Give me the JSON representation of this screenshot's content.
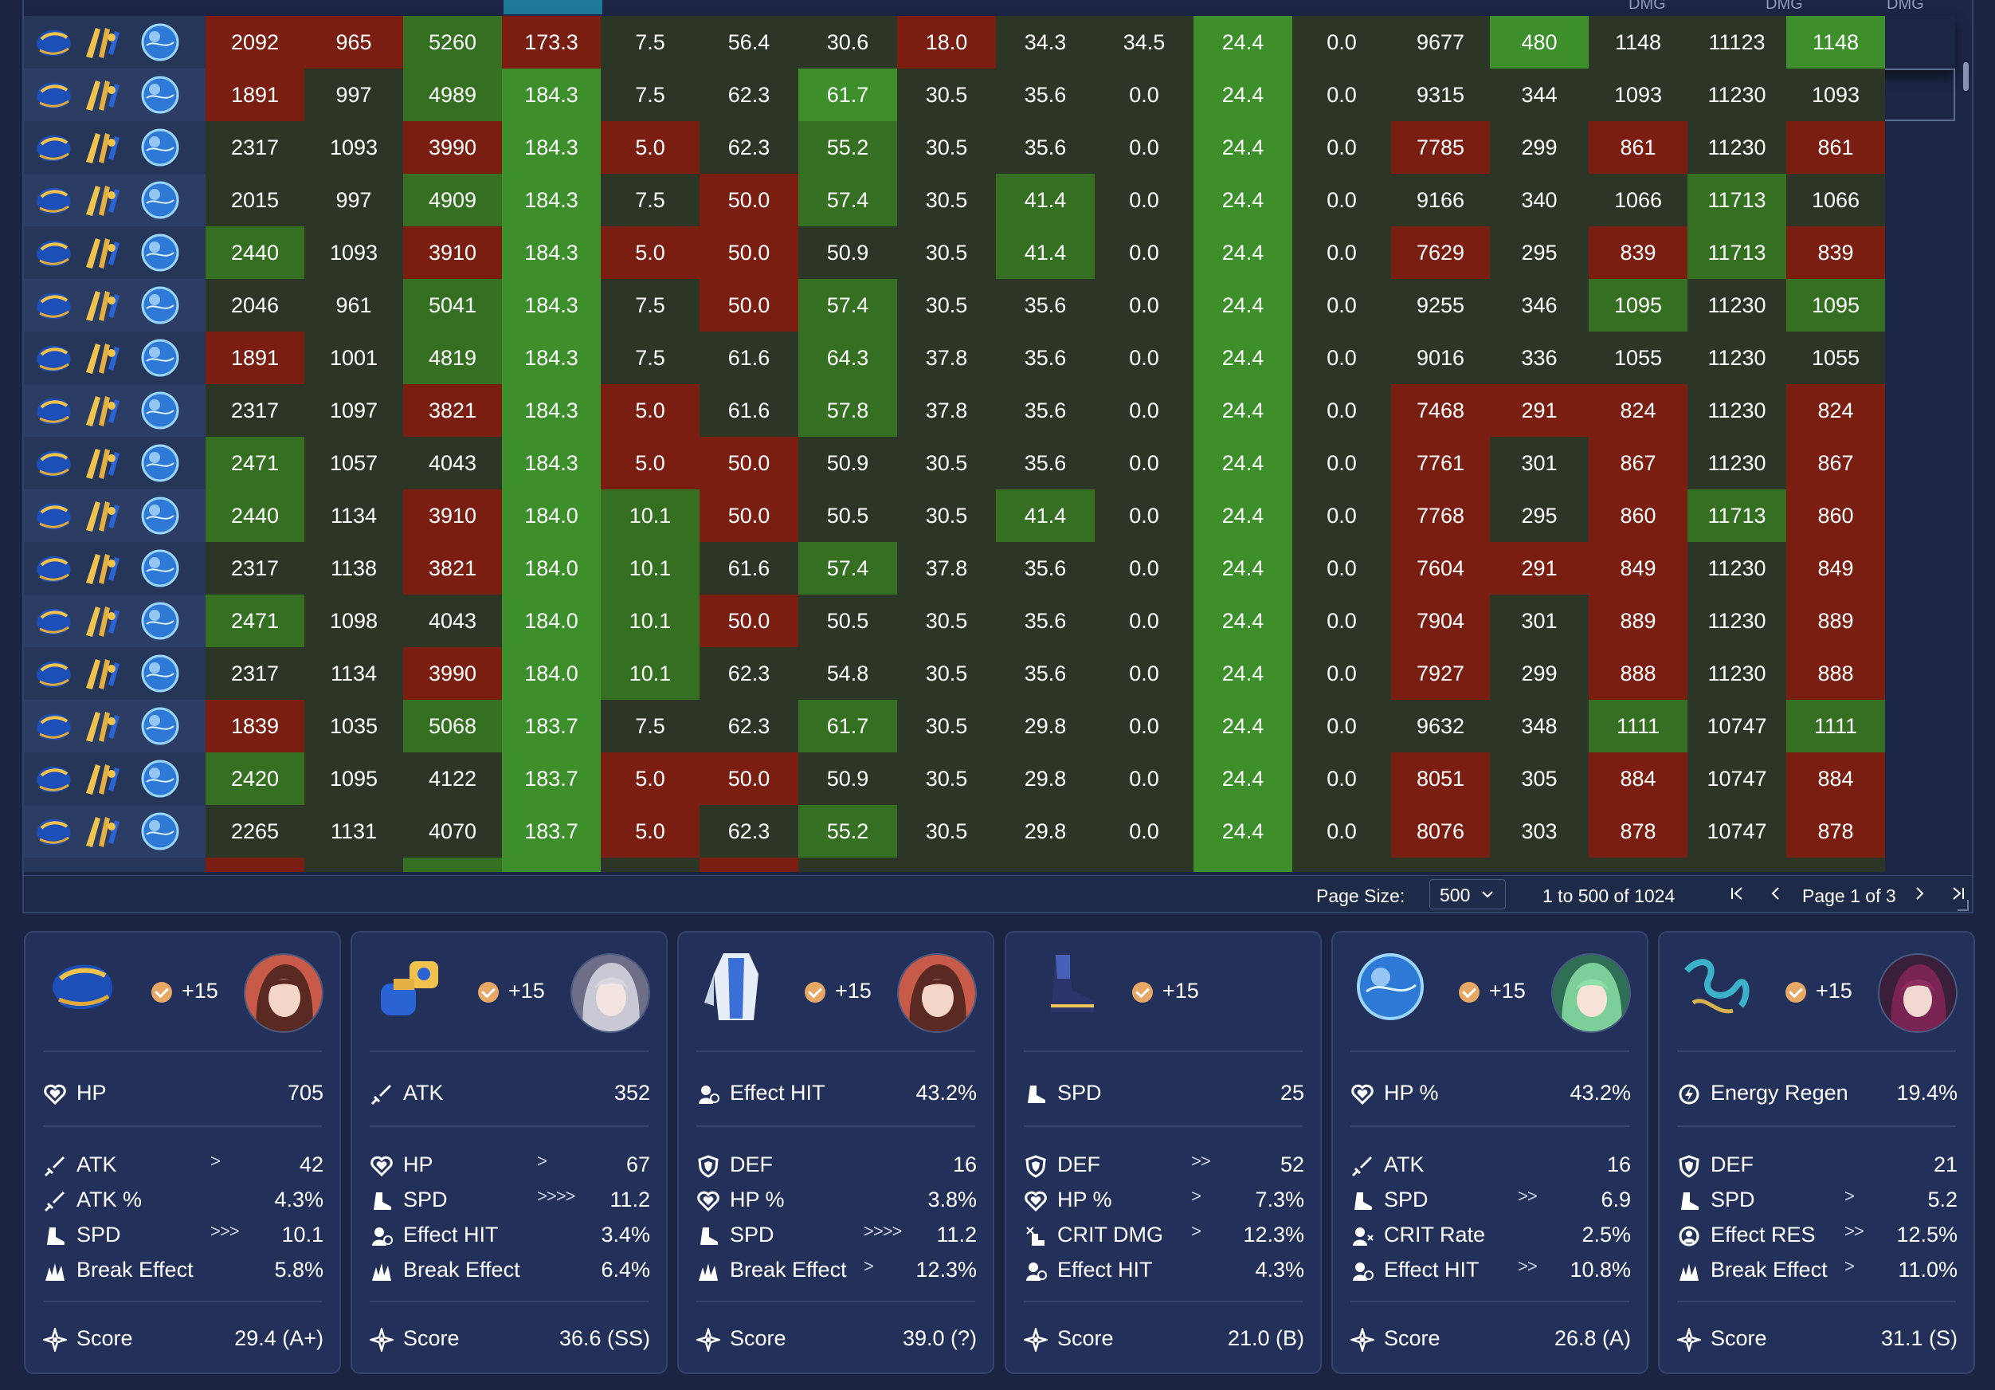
{
  "header": {
    "col_dmg_labels": [
      "DMG",
      "DMG",
      "DMG"
    ]
  },
  "colors": {
    "green": "#3c8f2a",
    "red": "#7a1e12",
    "neutral": "#2d3626"
  },
  "grid": {
    "rows": [
      {
        "v": [
          "2092",
          "965",
          "5260",
          "173.3",
          "7.5",
          "56.4",
          "30.6",
          "18.0",
          "34.3",
          "34.5",
          "24.4",
          "0.0",
          "9677",
          "480",
          "1148",
          "11123",
          "1148"
        ]
      },
      {
        "v": [
          "1891",
          "997",
          "4989",
          "184.3",
          "7.5",
          "62.3",
          "61.7",
          "30.5",
          "35.6",
          "0.0",
          "24.4",
          "0.0",
          "9315",
          "344",
          "1093",
          "11230",
          "1093"
        ]
      },
      {
        "v": [
          "2317",
          "1093",
          "3990",
          "184.3",
          "5.0",
          "62.3",
          "55.2",
          "30.5",
          "35.6",
          "0.0",
          "24.4",
          "0.0",
          "7785",
          "299",
          "861",
          "11230",
          "861"
        ]
      },
      {
        "v": [
          "2015",
          "997",
          "4909",
          "184.3",
          "7.5",
          "50.0",
          "57.4",
          "30.5",
          "41.4",
          "0.0",
          "24.4",
          "0.0",
          "9166",
          "340",
          "1066",
          "11713",
          "1066"
        ]
      },
      {
        "v": [
          "2440",
          "1093",
          "3910",
          "184.3",
          "5.0",
          "50.0",
          "50.9",
          "30.5",
          "41.4",
          "0.0",
          "24.4",
          "0.0",
          "7629",
          "295",
          "839",
          "11713",
          "839"
        ]
      },
      {
        "v": [
          "2046",
          "961",
          "5041",
          "184.3",
          "7.5",
          "50.0",
          "57.4",
          "30.5",
          "35.6",
          "0.0",
          "24.4",
          "0.0",
          "9255",
          "346",
          "1095",
          "11230",
          "1095"
        ]
      },
      {
        "v": [
          "1891",
          "1001",
          "4819",
          "184.3",
          "7.5",
          "61.6",
          "64.3",
          "37.8",
          "35.6",
          "0.0",
          "24.4",
          "0.0",
          "9016",
          "336",
          "1055",
          "11230",
          "1055"
        ]
      },
      {
        "v": [
          "2317",
          "1097",
          "3821",
          "184.3",
          "5.0",
          "61.6",
          "57.8",
          "37.8",
          "35.6",
          "0.0",
          "24.4",
          "0.0",
          "7468",
          "291",
          "824",
          "11230",
          "824"
        ]
      },
      {
        "v": [
          "2471",
          "1057",
          "4043",
          "184.3",
          "5.0",
          "50.0",
          "50.9",
          "30.5",
          "35.6",
          "0.0",
          "24.4",
          "0.0",
          "7761",
          "301",
          "867",
          "11230",
          "867"
        ]
      },
      {
        "v": [
          "2440",
          "1134",
          "3910",
          "184.0",
          "10.1",
          "50.0",
          "50.5",
          "30.5",
          "41.4",
          "0.0",
          "24.4",
          "0.0",
          "7768",
          "295",
          "860",
          "11713",
          "860"
        ]
      },
      {
        "v": [
          "2317",
          "1138",
          "3821",
          "184.0",
          "10.1",
          "61.6",
          "57.4",
          "37.8",
          "35.6",
          "0.0",
          "24.4",
          "0.0",
          "7604",
          "291",
          "849",
          "11230",
          "849"
        ]
      },
      {
        "v": [
          "2471",
          "1098",
          "4043",
          "184.0",
          "10.1",
          "50.0",
          "50.5",
          "30.5",
          "35.6",
          "0.0",
          "24.4",
          "0.0",
          "7904",
          "301",
          "889",
          "11230",
          "889"
        ]
      },
      {
        "v": [
          "2317",
          "1134",
          "3990",
          "184.0",
          "10.1",
          "62.3",
          "54.8",
          "30.5",
          "35.6",
          "0.0",
          "24.4",
          "0.0",
          "7927",
          "299",
          "888",
          "11230",
          "888"
        ]
      },
      {
        "v": [
          "1839",
          "1035",
          "5068",
          "183.7",
          "7.5",
          "62.3",
          "61.7",
          "30.5",
          "29.8",
          "0.0",
          "24.4",
          "0.0",
          "9632",
          "348",
          "1111",
          "10747",
          "1111"
        ]
      },
      {
        "v": [
          "2420",
          "1095",
          "4122",
          "183.7",
          "5.0",
          "50.0",
          "50.9",
          "30.5",
          "29.8",
          "0.0",
          "24.4",
          "0.0",
          "8051",
          "305",
          "884",
          "10747",
          "884"
        ]
      },
      {
        "v": [
          "2265",
          "1131",
          "4070",
          "183.7",
          "5.0",
          "62.3",
          "55.2",
          "30.5",
          "29.8",
          "0.0",
          "24.4",
          "0.0",
          "8076",
          "303",
          "878",
          "10747",
          "878"
        ]
      }
    ],
    "tints": [
      [
        "r",
        "r",
        "g",
        "r",
        "n",
        "n",
        "n",
        "r",
        "n",
        "n",
        "G",
        "n",
        "n",
        "G",
        "n",
        "n",
        "G"
      ],
      [
        "r",
        "n",
        "g",
        "G",
        "n",
        "n",
        "G",
        "n",
        "n",
        "n",
        "G",
        "n",
        "n",
        "n",
        "n",
        "n",
        "n"
      ],
      [
        "n",
        "n",
        "r",
        "G",
        "r",
        "n",
        "g",
        "n",
        "n",
        "n",
        "G",
        "n",
        "r",
        "n",
        "r",
        "n",
        "r"
      ],
      [
        "n",
        "n",
        "g",
        "G",
        "n",
        "r",
        "g",
        "n",
        "g",
        "n",
        "G",
        "n",
        "n",
        "n",
        "n",
        "g",
        "n"
      ],
      [
        "g",
        "n",
        "r",
        "G",
        "r",
        "r",
        "n",
        "n",
        "g",
        "n",
        "G",
        "n",
        "r",
        "n",
        "r",
        "g",
        "r"
      ],
      [
        "n",
        "n",
        "g",
        "G",
        "n",
        "r",
        "g",
        "n",
        "n",
        "n",
        "G",
        "n",
        "n",
        "n",
        "g",
        "n",
        "g"
      ],
      [
        "r",
        "n",
        "g",
        "G",
        "n",
        "n",
        "g",
        "n",
        "n",
        "n",
        "G",
        "n",
        "n",
        "n",
        "n",
        "n",
        "n"
      ],
      [
        "n",
        "n",
        "r",
        "G",
        "r",
        "n",
        "g",
        "n",
        "n",
        "n",
        "G",
        "n",
        "r",
        "r",
        "r",
        "n",
        "r"
      ],
      [
        "g",
        "n",
        "n",
        "G",
        "r",
        "r",
        "n",
        "n",
        "n",
        "n",
        "G",
        "n",
        "r",
        "n",
        "r",
        "n",
        "r"
      ],
      [
        "g",
        "n",
        "r",
        "G",
        "g",
        "r",
        "n",
        "n",
        "g",
        "n",
        "G",
        "n",
        "r",
        "n",
        "r",
        "g",
        "r"
      ],
      [
        "n",
        "n",
        "r",
        "G",
        "g",
        "n",
        "g",
        "n",
        "n",
        "n",
        "G",
        "n",
        "r",
        "r",
        "r",
        "n",
        "r"
      ],
      [
        "g",
        "n",
        "n",
        "G",
        "g",
        "r",
        "n",
        "n",
        "n",
        "n",
        "G",
        "n",
        "r",
        "n",
        "r",
        "n",
        "r"
      ],
      [
        "n",
        "n",
        "r",
        "G",
        "g",
        "n",
        "n",
        "n",
        "n",
        "n",
        "G",
        "n",
        "r",
        "n",
        "r",
        "n",
        "r"
      ],
      [
        "r",
        "n",
        "g",
        "G",
        "n",
        "n",
        "g",
        "n",
        "n",
        "n",
        "G",
        "n",
        "n",
        "n",
        "g",
        "n",
        "g"
      ],
      [
        "g",
        "n",
        "n",
        "G",
        "r",
        "r",
        "n",
        "n",
        "n",
        "n",
        "G",
        "n",
        "r",
        "n",
        "r",
        "n",
        "r"
      ],
      [
        "n",
        "n",
        "n",
        "G",
        "r",
        "n",
        "g",
        "n",
        "n",
        "n",
        "G",
        "n",
        "r",
        "n",
        "r",
        "n",
        "r"
      ]
    ]
  },
  "pager": {
    "page_size_label": "Page Size:",
    "page_size_value": "500",
    "range_text": "1 to 500 of 1024",
    "page_text": "Page 1 of 3"
  },
  "cards": [
    {
      "level": "+15",
      "main": {
        "name": "HP",
        "value": "705",
        "icon": "heart-icon"
      },
      "subs": [
        {
          "name": "ATK",
          "rolls": ">",
          "value": "42",
          "icon": "sword-icon"
        },
        {
          "name": "ATK %",
          "rolls": "",
          "value": "4.3%",
          "icon": "sword-icon"
        },
        {
          "name": "SPD",
          "rolls": ">>>",
          "value": "10.1",
          "icon": "boot-icon"
        },
        {
          "name": "Break Effect",
          "rolls": "",
          "value": "5.8%",
          "icon": "break-icon"
        }
      ],
      "score_label": "Score",
      "score": "29.4 (A+)",
      "piece": "head",
      "avatar": "a1"
    },
    {
      "level": "+15",
      "main": {
        "name": "ATK",
        "value": "352",
        "icon": "sword-icon"
      },
      "subs": [
        {
          "name": "HP",
          "rolls": ">",
          "value": "67",
          "icon": "heart-icon"
        },
        {
          "name": "SPD",
          "rolls": ">>>>",
          "value": "11.2",
          "icon": "boot-icon"
        },
        {
          "name": "Effect HIT",
          "rolls": "",
          "value": "3.4%",
          "icon": "effect-hit-icon"
        },
        {
          "name": "Break Effect",
          "rolls": "",
          "value": "6.4%",
          "icon": "break-icon"
        }
      ],
      "score_label": "Score",
      "score": "36.6 (SS)",
      "piece": "hands",
      "avatar": "a2"
    },
    {
      "level": "+15",
      "main": {
        "name": "Effect HIT",
        "value": "43.2%",
        "icon": "effect-hit-icon"
      },
      "subs": [
        {
          "name": "DEF",
          "rolls": "",
          "value": "16",
          "icon": "shield-icon"
        },
        {
          "name": "HP %",
          "rolls": "",
          "value": "3.8%",
          "icon": "heart-icon"
        },
        {
          "name": "SPD",
          "rolls": ">>>>",
          "value": "11.2",
          "icon": "boot-icon"
        },
        {
          "name": "Break Effect",
          "rolls": ">",
          "value": "12.3%",
          "icon": "break-icon"
        }
      ],
      "score_label": "Score",
      "score": "39.0 (?)",
      "piece": "body",
      "avatar": "a1"
    },
    {
      "level": "+15",
      "main": {
        "name": "SPD",
        "value": "25",
        "icon": "boot-icon"
      },
      "subs": [
        {
          "name": "DEF",
          "rolls": ">>",
          "value": "52",
          "icon": "shield-icon"
        },
        {
          "name": "HP %",
          "rolls": ">",
          "value": "7.3%",
          "icon": "heart-icon"
        },
        {
          "name": "CRIT DMG",
          "rolls": ">",
          "value": "12.3%",
          "icon": "crit-dmg-icon"
        },
        {
          "name": "Effect HIT",
          "rolls": "",
          "value": "4.3%",
          "icon": "effect-hit-icon"
        }
      ],
      "score_label": "Score",
      "score": "21.0 (B)",
      "piece": "feet",
      "avatar": ""
    },
    {
      "level": "+15",
      "main": {
        "name": "HP %",
        "value": "43.2%",
        "icon": "heart-icon"
      },
      "subs": [
        {
          "name": "ATK",
          "rolls": "",
          "value": "16",
          "icon": "sword-icon"
        },
        {
          "name": "SPD",
          "rolls": ">>",
          "value": "6.9",
          "icon": "boot-icon"
        },
        {
          "name": "CRIT Rate",
          "rolls": "",
          "value": "2.5%",
          "icon": "crit-rate-icon"
        },
        {
          "name": "Effect HIT",
          "rolls": ">>",
          "value": "10.8%",
          "icon": "effect-hit-icon"
        }
      ],
      "score_label": "Score",
      "score": "26.8 (A)",
      "piece": "sphere",
      "avatar": "a3"
    },
    {
      "level": "+15",
      "main": {
        "name": "Energy Regen",
        "value": "19.4%",
        "icon": "energy-icon"
      },
      "subs": [
        {
          "name": "DEF",
          "rolls": "",
          "value": "21",
          "icon": "shield-icon"
        },
        {
          "name": "SPD",
          "rolls": ">",
          "value": "5.2",
          "icon": "boot-icon"
        },
        {
          "name": "Effect RES",
          "rolls": ">>",
          "value": "12.5%",
          "icon": "effect-res-icon"
        },
        {
          "name": "Break Effect",
          "rolls": ">",
          "value": "11.0%",
          "icon": "break-icon"
        }
      ],
      "score_label": "Score",
      "score": "31.1 (S)",
      "piece": "rope",
      "avatar": "a4"
    }
  ]
}
